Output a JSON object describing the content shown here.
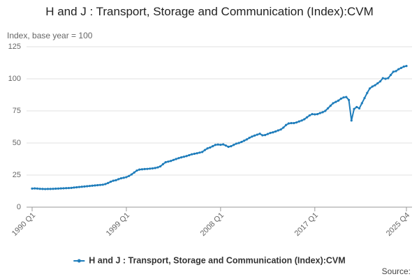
{
  "chart_data": {
    "type": "line",
    "title": "H and J : Transport, Storage and Communication (Index):CVM",
    "y_label": "Index, base year = 100",
    "source": "Source:",
    "categories": [
      "1990 Q1",
      null,
      null,
      null,
      null,
      null,
      null,
      null,
      null,
      null,
      null,
      null,
      null,
      null,
      null,
      null,
      null,
      null,
      null,
      null,
      null,
      null,
      null,
      null,
      null,
      null,
      null,
      null,
      null,
      null,
      null,
      null,
      null,
      null,
      null,
      null,
      "1999 Q1",
      null,
      null,
      null,
      null,
      null,
      null,
      null,
      null,
      null,
      null,
      null,
      null,
      null,
      null,
      null,
      null,
      null,
      null,
      null,
      null,
      null,
      null,
      null,
      null,
      null,
      null,
      null,
      null,
      null,
      null,
      null,
      null,
      null,
      null,
      null,
      "2008 Q1",
      null,
      null,
      null,
      null,
      null,
      null,
      null,
      null,
      null,
      null,
      null,
      null,
      null,
      null,
      null,
      null,
      null,
      null,
      null,
      null,
      null,
      null,
      null,
      null,
      null,
      null,
      null,
      null,
      null,
      null,
      null,
      null,
      null,
      null,
      null,
      "2017 Q1",
      null,
      null,
      null,
      null,
      null,
      null,
      null,
      null,
      null,
      null,
      null,
      null,
      null,
      null,
      null,
      null,
      null,
      null,
      null,
      null,
      null,
      null,
      null,
      null,
      null,
      null,
      null,
      null,
      null,
      null,
      null,
      null,
      null,
      null,
      "2025 Q4"
    ],
    "series": [
      {
        "name": "H and J : Transport, Storage and Communication (Index):CVM",
        "color": "#1f7dbb",
        "values": [
          14.5,
          14.6,
          14.5,
          14.3,
          14.2,
          14.1,
          14.2,
          14.2,
          14.3,
          14.4,
          14.5,
          14.6,
          14.7,
          14.8,
          14.9,
          15.0,
          15.3,
          15.5,
          15.7,
          15.9,
          16.1,
          16.3,
          16.5,
          16.7,
          16.9,
          17.1,
          17.3,
          17.5,
          18.0,
          18.8,
          19.8,
          20.6,
          21.0,
          21.8,
          22.5,
          22.9,
          23.4,
          24.3,
          25.5,
          27.0,
          28.5,
          29.3,
          29.5,
          29.7,
          29.8,
          30.0,
          30.2,
          30.5,
          31.0,
          31.8,
          33.5,
          35.0,
          35.5,
          36.0,
          36.8,
          37.5,
          38.2,
          38.8,
          39.3,
          39.8,
          40.5,
          41.2,
          41.6,
          42.0,
          42.5,
          43.0,
          44.5,
          45.8,
          46.5,
          47.5,
          48.5,
          48.8,
          48.6,
          48.9,
          48.0,
          47.0,
          47.5,
          48.5,
          49.5,
          50.0,
          50.8,
          51.8,
          52.8,
          54.0,
          55.0,
          55.8,
          56.5,
          57.2,
          56.0,
          56.2,
          57.0,
          57.8,
          58.3,
          59.0,
          59.8,
          60.5,
          62.0,
          64.0,
          65.2,
          65.5,
          65.5,
          66.0,
          66.8,
          67.5,
          68.5,
          70.0,
          71.5,
          72.5,
          72.3,
          72.5,
          73.3,
          74.0,
          75.0,
          77.0,
          79.0,
          81.0,
          82.0,
          83.0,
          84.5,
          85.5,
          85.8,
          83.5,
          67.5,
          76.5,
          78.0,
          77.0,
          81.0,
          85.0,
          89.0,
          92.5,
          94.0,
          95.0,
          96.5,
          98.0,
          100.5,
          100.0,
          100.5,
          103.0,
          105.5,
          106.0,
          107.5,
          108.5,
          109.5,
          110.0
        ]
      }
    ],
    "ylim": [
      0,
      125
    ],
    "yticks": [
      0,
      25,
      50,
      75,
      100,
      125
    ],
    "grid": true,
    "legend": "bottom"
  }
}
